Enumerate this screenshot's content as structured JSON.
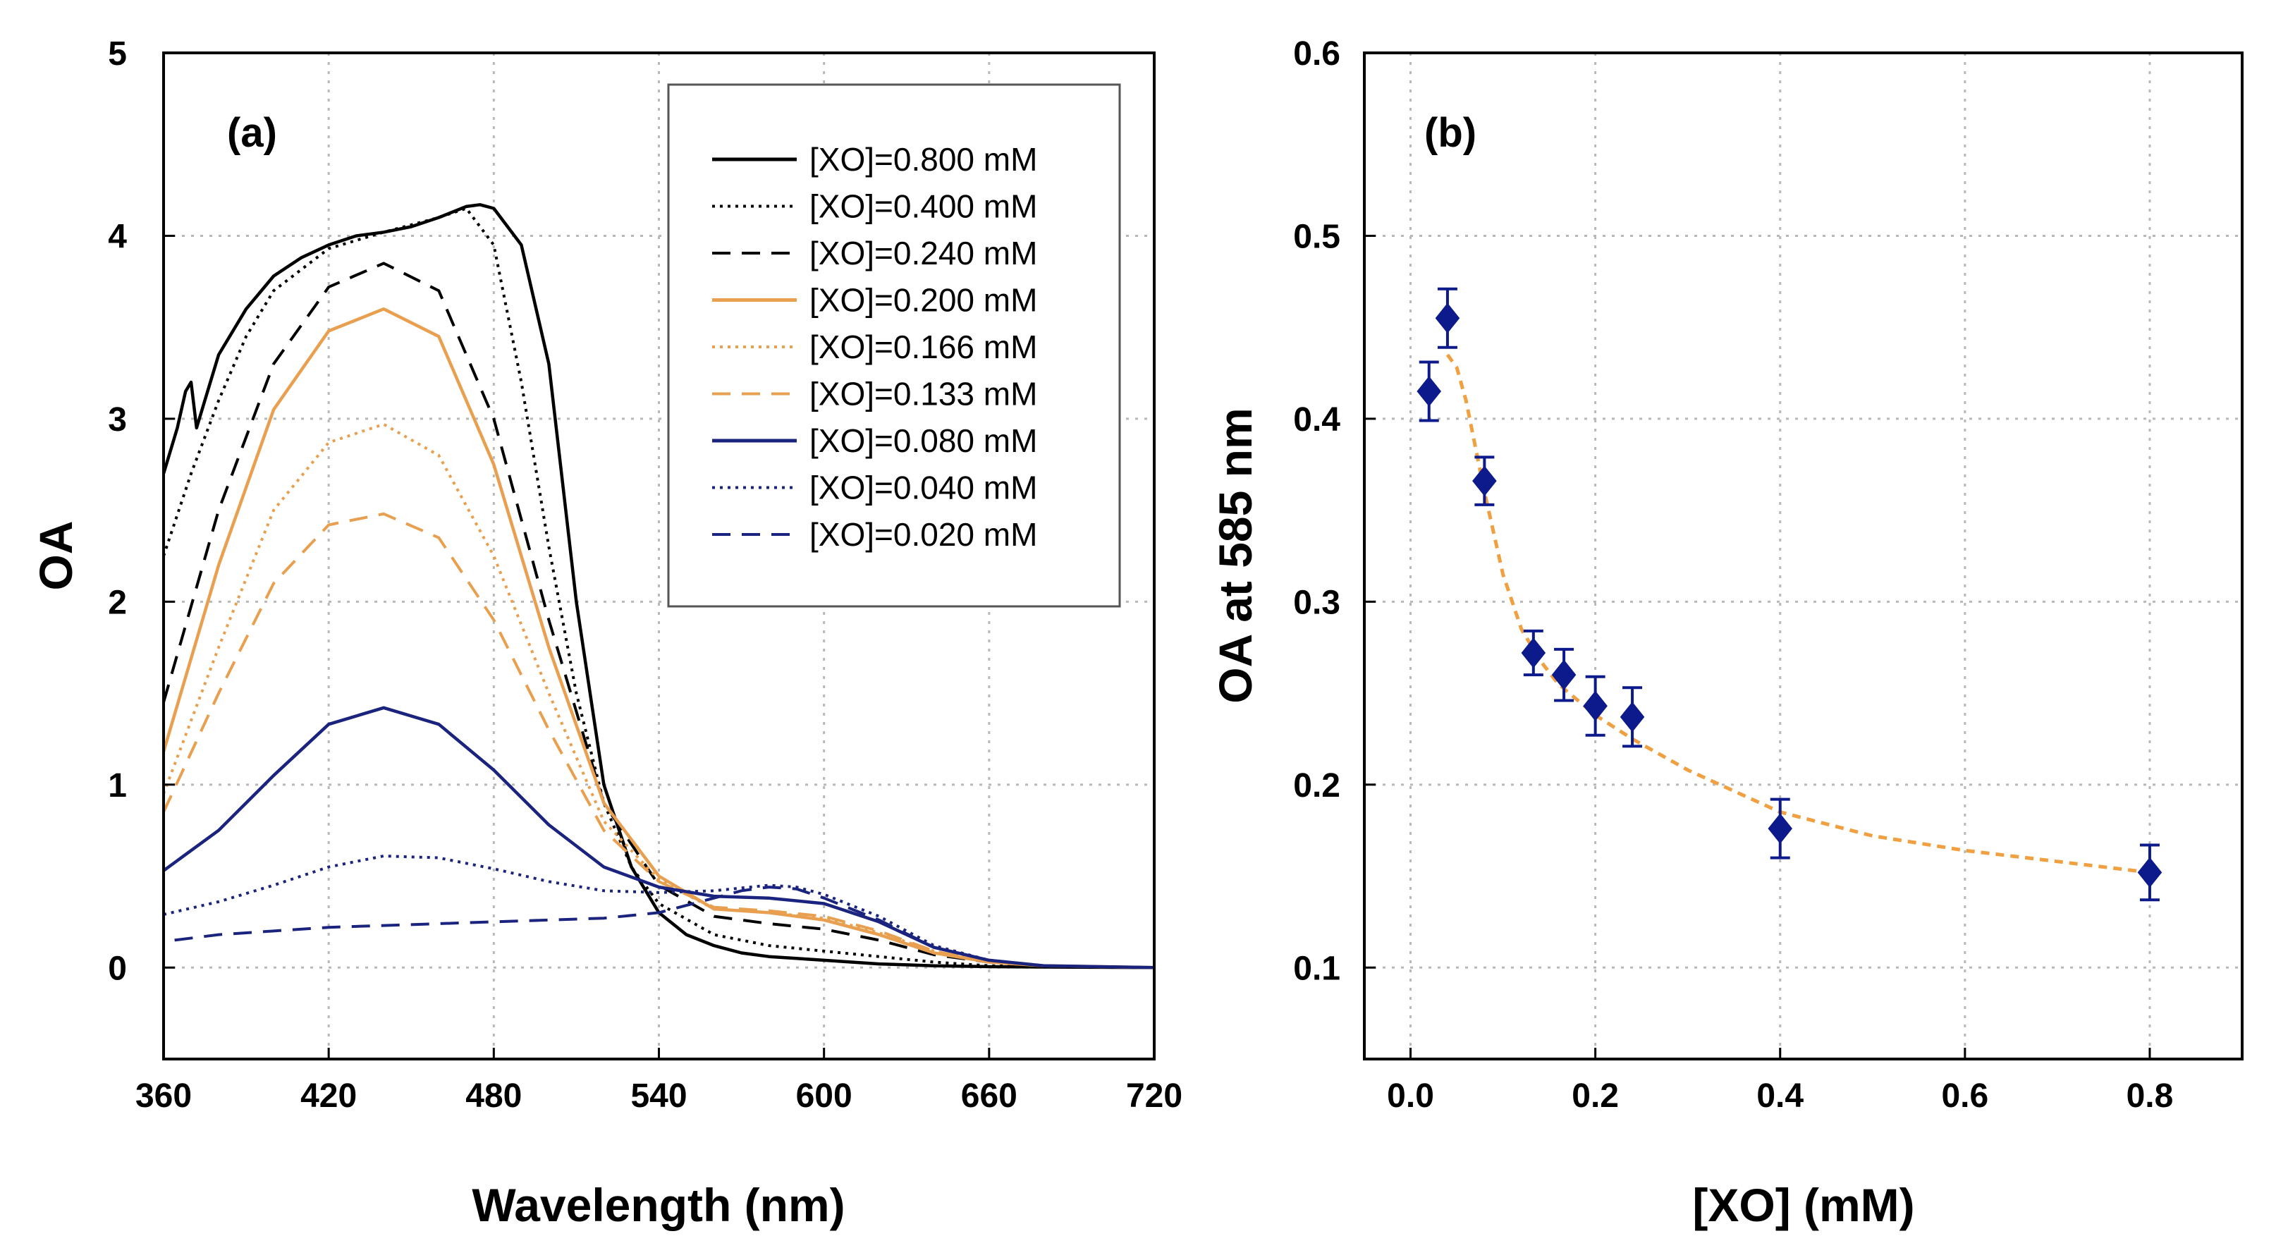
{
  "chart_data": [
    {
      "type": "line",
      "panel_label": "(a)",
      "xlabel": "Wavelength (nm)",
      "ylabel": "OA",
      "xlim": [
        360,
        720
      ],
      "ylim": [
        -0.5,
        5
      ],
      "xticks": [
        360,
        420,
        480,
        540,
        600,
        660,
        720
      ],
      "xtick_labels": [
        "360",
        "420",
        "480",
        "540",
        "600",
        "660",
        "720"
      ],
      "yticks": [
        0,
        1,
        2,
        3,
        4,
        5
      ],
      "ytick_labels": [
        "0",
        "1",
        "2",
        "3",
        "4",
        "5"
      ],
      "grid": true,
      "legend_position": "top-right",
      "series": [
        {
          "name": "[XO]=0.800 mM",
          "color": "#000000",
          "style": "solid",
          "x": [
            360,
            365,
            368,
            370,
            372,
            375,
            380,
            390,
            400,
            410,
            420,
            430,
            440,
            450,
            460,
            470,
            475,
            480,
            490,
            500,
            510,
            520,
            530,
            540,
            550,
            560,
            570,
            580,
            590,
            600,
            610,
            620,
            630,
            640,
            660,
            680,
            720
          ],
          "y": [
            2.7,
            2.95,
            3.15,
            3.2,
            2.95,
            3.1,
            3.35,
            3.6,
            3.78,
            3.88,
            3.95,
            4.0,
            4.02,
            4.05,
            4.1,
            4.16,
            4.17,
            4.15,
            3.95,
            3.3,
            2.0,
            1.0,
            0.55,
            0.3,
            0.18,
            0.12,
            0.08,
            0.06,
            0.05,
            0.04,
            0.03,
            0.02,
            0.015,
            0.01,
            0.005,
            0.003,
            0
          ]
        },
        {
          "name": "[XO]=0.400 mM",
          "color": "#000000",
          "style": "dotted",
          "x": [
            360,
            370,
            380,
            390,
            400,
            420,
            440,
            460,
            470,
            480,
            490,
            500,
            510,
            520,
            530,
            540,
            560,
            580,
            600,
            620,
            640,
            660,
            680,
            720
          ],
          "y": [
            2.25,
            2.7,
            3.1,
            3.45,
            3.7,
            3.93,
            4.02,
            4.1,
            4.15,
            3.95,
            3.2,
            2.3,
            1.5,
            0.9,
            0.55,
            0.35,
            0.18,
            0.12,
            0.09,
            0.06,
            0.03,
            0.01,
            0.005,
            0
          ]
        },
        {
          "name": "[XO]=0.240 mM",
          "color": "#000000",
          "style": "dashed",
          "x": [
            360,
            380,
            400,
            420,
            440,
            460,
            480,
            500,
            520,
            540,
            560,
            580,
            600,
            620,
            640,
            660,
            680,
            720
          ],
          "y": [
            1.45,
            2.5,
            3.3,
            3.72,
            3.85,
            3.7,
            3.0,
            1.9,
            0.9,
            0.45,
            0.28,
            0.24,
            0.21,
            0.15,
            0.07,
            0.03,
            0.01,
            0
          ]
        },
        {
          "name": "[XO]=0.200 mM",
          "color": "#e8a050",
          "style": "solid",
          "x": [
            360,
            380,
            400,
            420,
            440,
            460,
            480,
            500,
            520,
            540,
            560,
            580,
            600,
            620,
            640,
            660,
            680,
            720
          ],
          "y": [
            1.18,
            2.2,
            3.05,
            3.48,
            3.6,
            3.45,
            2.75,
            1.75,
            0.9,
            0.5,
            0.32,
            0.3,
            0.26,
            0.18,
            0.08,
            0.03,
            0.01,
            0
          ]
        },
        {
          "name": "[XO]=0.166 mM",
          "color": "#e8a050",
          "style": "dotted",
          "x": [
            360,
            380,
            400,
            420,
            440,
            460,
            480,
            500,
            520,
            540,
            560,
            580,
            600,
            620,
            640,
            660,
            680,
            720
          ],
          "y": [
            0.95,
            1.75,
            2.5,
            2.87,
            2.97,
            2.8,
            2.25,
            1.5,
            0.8,
            0.48,
            0.32,
            0.3,
            0.27,
            0.19,
            0.09,
            0.03,
            0.01,
            0
          ]
        },
        {
          "name": "[XO]=0.133 mM",
          "color": "#e8a050",
          "style": "dashed",
          "x": [
            360,
            380,
            400,
            420,
            440,
            460,
            480,
            500,
            520,
            540,
            560,
            580,
            600,
            620,
            640,
            660,
            680,
            720
          ],
          "y": [
            0.85,
            1.5,
            2.1,
            2.42,
            2.48,
            2.35,
            1.9,
            1.3,
            0.75,
            0.47,
            0.33,
            0.31,
            0.28,
            0.2,
            0.09,
            0.03,
            0.01,
            0
          ]
        },
        {
          "name": "[XO]=0.080 mM",
          "color": "#1a237e",
          "style": "solid",
          "x": [
            360,
            380,
            400,
            420,
            440,
            460,
            480,
            500,
            520,
            540,
            560,
            580,
            600,
            620,
            640,
            660,
            680,
            720
          ],
          "y": [
            0.53,
            0.75,
            1.05,
            1.33,
            1.42,
            1.33,
            1.08,
            0.78,
            0.55,
            0.44,
            0.39,
            0.38,
            0.35,
            0.25,
            0.11,
            0.04,
            0.01,
            0
          ]
        },
        {
          "name": "[XO]=0.040 mM",
          "color": "#1a237e",
          "style": "dotted",
          "x": [
            360,
            380,
            400,
            420,
            440,
            460,
            480,
            500,
            520,
            540,
            560,
            580,
            590,
            600,
            620,
            640,
            660,
            680,
            720
          ],
          "y": [
            0.29,
            0.36,
            0.45,
            0.55,
            0.61,
            0.6,
            0.54,
            0.47,
            0.42,
            0.41,
            0.42,
            0.45,
            0.44,
            0.4,
            0.28,
            0.12,
            0.04,
            0.01,
            0
          ]
        },
        {
          "name": "[XO]=0.020 mM",
          "color": "#1a237e",
          "style": "dashed",
          "x": [
            364,
            380,
            400,
            420,
            440,
            460,
            480,
            500,
            520,
            540,
            560,
            570,
            580,
            590,
            600,
            620,
            640,
            660,
            680,
            720
          ],
          "y": [
            0.15,
            0.18,
            0.2,
            0.22,
            0.23,
            0.24,
            0.25,
            0.26,
            0.27,
            0.3,
            0.38,
            0.42,
            0.44,
            0.43,
            0.38,
            0.26,
            0.11,
            0.04,
            0.01,
            0
          ]
        }
      ]
    },
    {
      "type": "scatter",
      "panel_label": "(b)",
      "xlabel": "[XO] (mM)",
      "ylabel": "OA at 585 nm",
      "xlim": [
        -0.05,
        0.9
      ],
      "ylim": [
        0.05,
        0.6
      ],
      "xticks": [
        0.0,
        0.2,
        0.4,
        0.6,
        0.8
      ],
      "xtick_labels": [
        "0.0",
        "0.2",
        "0.4",
        "0.6",
        "0.8"
      ],
      "yticks": [
        0.1,
        0.2,
        0.3,
        0.4,
        0.5,
        0.6
      ],
      "ytick_labels": [
        "0.1",
        "0.2",
        "0.3",
        "0.4",
        "0.5",
        "0.6"
      ],
      "grid": true,
      "marker_color": "#0d1a8c",
      "fit_color": "#f0a040",
      "points": {
        "x": [
          0.02,
          0.04,
          0.08,
          0.133,
          0.166,
          0.2,
          0.24,
          0.4,
          0.8
        ],
        "y": [
          0.415,
          0.455,
          0.366,
          0.272,
          0.26,
          0.243,
          0.237,
          0.176,
          0.152
        ],
        "err": [
          0.016,
          0.016,
          0.013,
          0.012,
          0.014,
          0.016,
          0.016,
          0.016,
          0.015
        ]
      },
      "fit": {
        "x": [
          0.04,
          0.05,
          0.06,
          0.07,
          0.08,
          0.1,
          0.12,
          0.14,
          0.16,
          0.2,
          0.24,
          0.3,
          0.4,
          0.5,
          0.6,
          0.7,
          0.8
        ],
        "y": [
          0.435,
          0.428,
          0.41,
          0.385,
          0.36,
          0.315,
          0.285,
          0.268,
          0.255,
          0.238,
          0.225,
          0.208,
          0.185,
          0.172,
          0.164,
          0.158,
          0.152
        ]
      }
    }
  ]
}
